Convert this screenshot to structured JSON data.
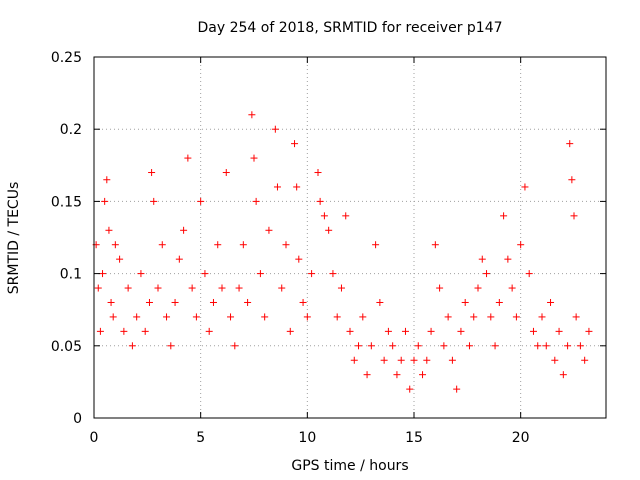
{
  "chart_data": {
    "type": "scatter",
    "title": "Day 254 of 2018, SRMTID for receiver p147",
    "xlabel": "GPS time / hours",
    "ylabel": "SRMTID / TECUs",
    "xlim": [
      0,
      24
    ],
    "ylim": [
      0,
      0.25
    ],
    "xticks": [
      0,
      5,
      10,
      15,
      20
    ],
    "yticks": [
      0,
      0.05,
      0.1,
      0.15,
      0.2,
      0.25
    ],
    "xtick_labels": [
      "0",
      "5",
      "10",
      "15",
      "20"
    ],
    "ytick_labels": [
      "0",
      "0.05",
      "0.1",
      "0.15",
      "0.2",
      "0.25"
    ],
    "grid": true,
    "marker": "plus",
    "color": "#ff0000",
    "series": [
      {
        "name": "SRMTID",
        "points": [
          [
            0.1,
            0.12
          ],
          [
            0.2,
            0.09
          ],
          [
            0.3,
            0.06
          ],
          [
            0.4,
            0.1
          ],
          [
            0.5,
            0.15
          ],
          [
            0.6,
            0.165
          ],
          [
            0.7,
            0.13
          ],
          [
            0.8,
            0.08
          ],
          [
            0.9,
            0.07
          ],
          [
            1.0,
            0.12
          ],
          [
            1.2,
            0.11
          ],
          [
            1.4,
            0.06
          ],
          [
            1.6,
            0.09
          ],
          [
            1.8,
            0.05
          ],
          [
            2.0,
            0.07
          ],
          [
            2.2,
            0.1
          ],
          [
            2.4,
            0.06
          ],
          [
            2.6,
            0.08
          ],
          [
            2.7,
            0.17
          ],
          [
            2.8,
            0.15
          ],
          [
            3.0,
            0.09
          ],
          [
            3.2,
            0.12
          ],
          [
            3.4,
            0.07
          ],
          [
            3.6,
            0.05
          ],
          [
            3.8,
            0.08
          ],
          [
            4.0,
            0.11
          ],
          [
            4.2,
            0.13
          ],
          [
            4.4,
            0.18
          ],
          [
            4.6,
            0.09
          ],
          [
            4.8,
            0.07
          ],
          [
            5.0,
            0.15
          ],
          [
            5.2,
            0.1
          ],
          [
            5.4,
            0.06
          ],
          [
            5.6,
            0.08
          ],
          [
            5.8,
            0.12
          ],
          [
            6.0,
            0.09
          ],
          [
            6.2,
            0.17
          ],
          [
            6.4,
            0.07
          ],
          [
            6.6,
            0.05
          ],
          [
            6.8,
            0.09
          ],
          [
            7.0,
            0.12
          ],
          [
            7.2,
            0.08
          ],
          [
            7.4,
            0.21
          ],
          [
            7.5,
            0.18
          ],
          [
            7.6,
            0.15
          ],
          [
            7.8,
            0.1
          ],
          [
            8.0,
            0.07
          ],
          [
            8.2,
            0.13
          ],
          [
            8.5,
            0.2
          ],
          [
            8.6,
            0.16
          ],
          [
            8.8,
            0.09
          ],
          [
            9.0,
            0.12
          ],
          [
            9.2,
            0.06
          ],
          [
            9.4,
            0.19
          ],
          [
            9.5,
            0.16
          ],
          [
            9.6,
            0.11
          ],
          [
            9.8,
            0.08
          ],
          [
            10.0,
            0.07
          ],
          [
            10.2,
            0.1
          ],
          [
            10.5,
            0.17
          ],
          [
            10.6,
            0.15
          ],
          [
            10.8,
            0.14
          ],
          [
            11.0,
            0.13
          ],
          [
            11.2,
            0.1
          ],
          [
            11.4,
            0.07
          ],
          [
            11.6,
            0.09
          ],
          [
            11.8,
            0.14
          ],
          [
            12.0,
            0.06
          ],
          [
            12.2,
            0.04
          ],
          [
            12.4,
            0.05
          ],
          [
            12.6,
            0.07
          ],
          [
            12.8,
            0.03
          ],
          [
            13.0,
            0.05
          ],
          [
            13.2,
            0.12
          ],
          [
            13.4,
            0.08
          ],
          [
            13.6,
            0.04
          ],
          [
            13.8,
            0.06
          ],
          [
            14.0,
            0.05
          ],
          [
            14.2,
            0.03
          ],
          [
            14.4,
            0.04
          ],
          [
            14.6,
            0.06
          ],
          [
            14.8,
            0.02
          ],
          [
            15.0,
            0.04
          ],
          [
            15.2,
            0.05
          ],
          [
            15.4,
            0.03
          ],
          [
            15.6,
            0.04
          ],
          [
            15.8,
            0.06
          ],
          [
            16.0,
            0.12
          ],
          [
            16.2,
            0.09
          ],
          [
            16.4,
            0.05
          ],
          [
            16.6,
            0.07
          ],
          [
            16.8,
            0.04
          ],
          [
            17.0,
            0.02
          ],
          [
            17.2,
            0.06
          ],
          [
            17.4,
            0.08
          ],
          [
            17.6,
            0.05
          ],
          [
            17.8,
            0.07
          ],
          [
            18.0,
            0.09
          ],
          [
            18.2,
            0.11
          ],
          [
            18.4,
            0.1
          ],
          [
            18.6,
            0.07
          ],
          [
            18.8,
            0.05
          ],
          [
            19.0,
            0.08
          ],
          [
            19.2,
            0.14
          ],
          [
            19.4,
            0.11
          ],
          [
            19.6,
            0.09
          ],
          [
            19.8,
            0.07
          ],
          [
            20.0,
            0.12
          ],
          [
            20.2,
            0.16
          ],
          [
            20.4,
            0.1
          ],
          [
            20.6,
            0.06
          ],
          [
            20.8,
            0.05
          ],
          [
            21.0,
            0.07
          ],
          [
            21.2,
            0.05
          ],
          [
            21.4,
            0.08
          ],
          [
            21.6,
            0.04
          ],
          [
            21.8,
            0.06
          ],
          [
            22.0,
            0.03
          ],
          [
            22.2,
            0.05
          ],
          [
            22.3,
            0.19
          ],
          [
            22.4,
            0.165
          ],
          [
            22.5,
            0.14
          ],
          [
            22.6,
            0.07
          ],
          [
            22.8,
            0.05
          ],
          [
            23.0,
            0.04
          ],
          [
            23.2,
            0.06
          ]
        ]
      }
    ]
  }
}
